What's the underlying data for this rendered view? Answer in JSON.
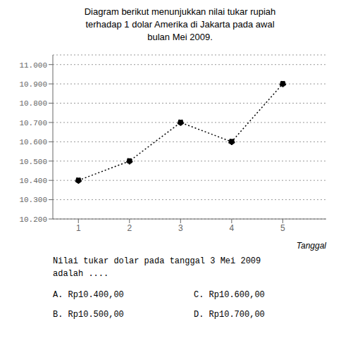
{
  "chart_data": {
    "type": "line",
    "title": [
      "Diagram berikut menunjukkan nilai tukar rupiah",
      "terhadap 1 dolar Amerika di Jakarta pada awal",
      "bulan Mei 2009."
    ],
    "x_label": "Tanggal",
    "x": [
      1,
      2,
      3,
      4,
      5
    ],
    "values": [
      10400,
      10500,
      10700,
      10600,
      10900
    ],
    "xlim": [
      0.5,
      5.85
    ],
    "xticks": [
      1,
      2,
      3,
      4,
      5
    ],
    "ylim": [
      10200,
      11050
    ],
    "yticks": [
      {
        "value": 10200,
        "label": "10.200"
      },
      {
        "value": 10300,
        "label": "10.300"
      },
      {
        "value": 10400,
        "label": "10.400"
      },
      {
        "value": 10500,
        "label": "10.500"
      },
      {
        "value": 10600,
        "label": "10.600"
      },
      {
        "value": 10700,
        "label": "10.700"
      },
      {
        "value": 10800,
        "label": "10.800"
      },
      {
        "value": 10900,
        "label": "10.900"
      },
      {
        "value": 11000,
        "label": "11.000"
      }
    ],
    "grid": "y",
    "color": "black",
    "line_style": "dotted",
    "marker": "circle",
    "annotations": [
      "Nilai tukar dolar pada tanggal 3 Mei 2009",
      "adalah ....",
      "A.  Rp10.400,00",
      "B.  Rp10.500,00",
      "C.  Rp10.600,00",
      "D.  Rp10.700,00"
    ]
  }
}
